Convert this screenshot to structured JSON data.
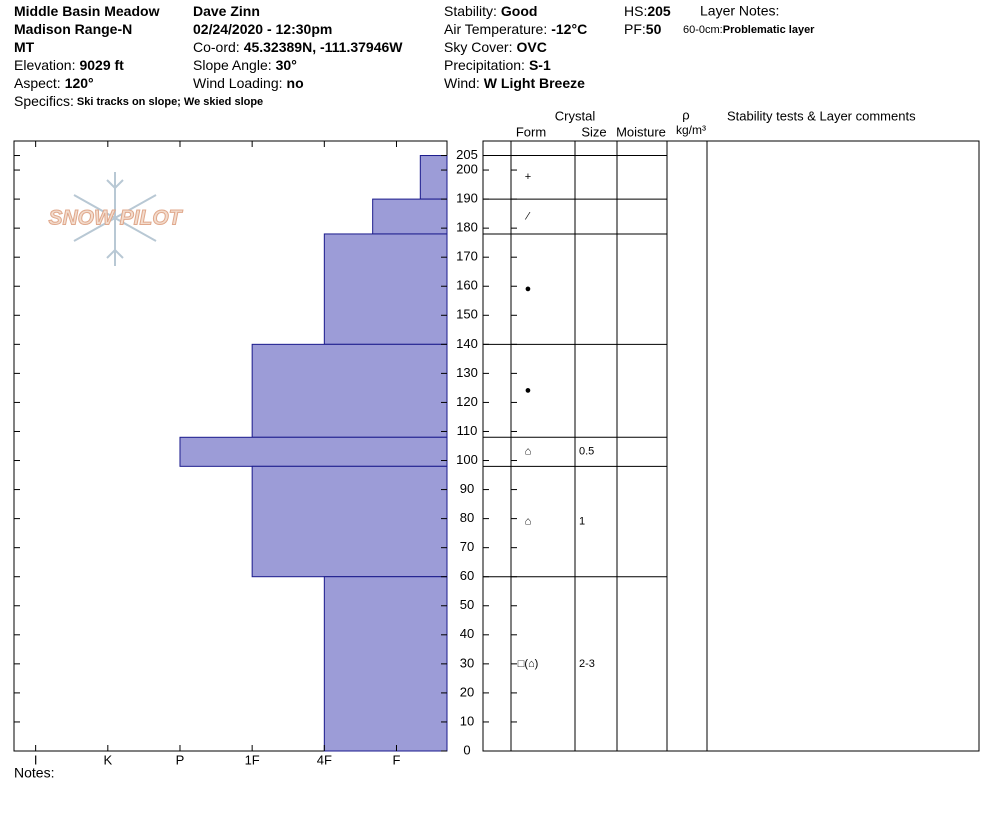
{
  "chart_data": {
    "type": "snow-profile",
    "header": {
      "columns": [
        [
          {
            "value": "Middle Basin Meadow"
          },
          {
            "value": "Madison Range-N"
          },
          {
            "value": "MT"
          },
          {
            "label": "Elevation:",
            "value": "9029 ft"
          },
          {
            "label": "Aspect:",
            "value": "120°"
          }
        ],
        [
          {
            "value": "Dave Zinn"
          },
          {
            "value": "02/24/2020 - 12:30pm"
          },
          {
            "label": "Co-ord:",
            "value": "45.32389N, -111.37946W"
          },
          {
            "label": "Slope Angle:",
            "value": "30°"
          },
          {
            "label": "Wind Loading:",
            "value": "no"
          }
        ],
        [
          {
            "label": "Stability:",
            "value": "Good"
          },
          {
            "label": "Air Temperature:",
            "value": "-12°C"
          },
          {
            "label": "Sky Cover:",
            "value": "OVC"
          },
          {
            "label": "Precipitation:",
            "value": "S-1"
          },
          {
            "label": "Wind:",
            "value": "W Light Breeze"
          }
        ],
        [
          {
            "label": "HS:",
            "value": 205
          },
          {
            "label": "PF:",
            "value": 50
          }
        ]
      ],
      "specifics": {
        "label": "Specifics:",
        "value": "Ski tracks on slope; We skied slope"
      },
      "layer_notes_title": "Layer Notes:",
      "layer_notes": [
        {
          "label": "60-0cm:",
          "value": "Problematic layer"
        }
      ]
    },
    "logo": "SNOW PILOT",
    "notes": "Notes:",
    "column_headers": {
      "crystal": "Crystal",
      "form": "Form",
      "size": "Size",
      "moisture": "Moisture",
      "density_symbol": "ρ",
      "density_unit": "kg/m³",
      "comments": "Stability tests & Layer comments"
    },
    "color": "#9c9cd7",
    "ylim": [
      0,
      210
    ],
    "yticks": [
      0,
      10,
      20,
      30,
      40,
      50,
      60,
      70,
      80,
      90,
      100,
      110,
      120,
      130,
      140,
      150,
      160,
      170,
      180,
      190,
      200,
      205
    ],
    "xlim": [
      6.3,
      0.3
    ],
    "xticks": [
      {
        "value": 6,
        "label": "I"
      },
      {
        "value": 5,
        "label": "K"
      },
      {
        "value": 4,
        "label": "P"
      },
      {
        "value": 3,
        "label": "1F"
      },
      {
        "value": 2,
        "label": "4F"
      },
      {
        "value": 1,
        "label": "F"
      }
    ],
    "layers": [
      {
        "top": 205,
        "bottom": 190,
        "hardness": 0.67,
        "form": "+"
      },
      {
        "top": 190,
        "bottom": 178,
        "hardness": 1.33,
        "form": "⁄"
      },
      {
        "top": 178,
        "bottom": 140,
        "hardness": 2,
        "form": "●"
      },
      {
        "top": 140,
        "bottom": 108,
        "hardness": 3,
        "form": "●"
      },
      {
        "top": 108,
        "bottom": 98,
        "hardness": 4,
        "form": "⌂",
        "size": "0.5"
      },
      {
        "top": 98,
        "bottom": 60,
        "hardness": 3,
        "form": "⌂",
        "size": "1"
      },
      {
        "top": 60,
        "bottom": 0,
        "hardness": 2,
        "form": "□(⌂)",
        "size": "2-3"
      }
    ]
  }
}
